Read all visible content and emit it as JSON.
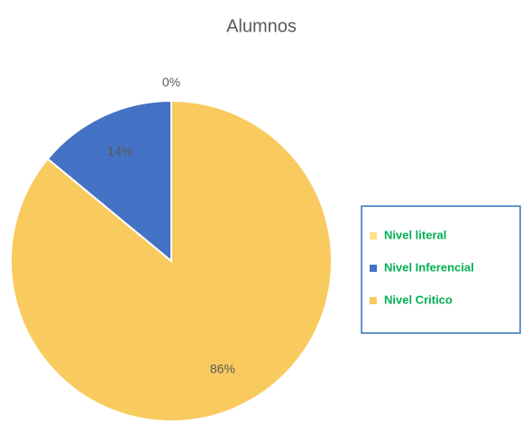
{
  "chart_data": {
    "type": "pie",
    "title": "Alumnos",
    "categories": [
      "Nivel literal",
      "Nivel Inferencial",
      "Nivel Critico"
    ],
    "values": [
      0,
      14,
      86
    ],
    "value_labels": [
      "0%",
      "14%",
      "86%"
    ],
    "colors": [
      "#ffe28a",
      "#4472c4",
      "#f9ca5e"
    ],
    "legend": "right"
  }
}
